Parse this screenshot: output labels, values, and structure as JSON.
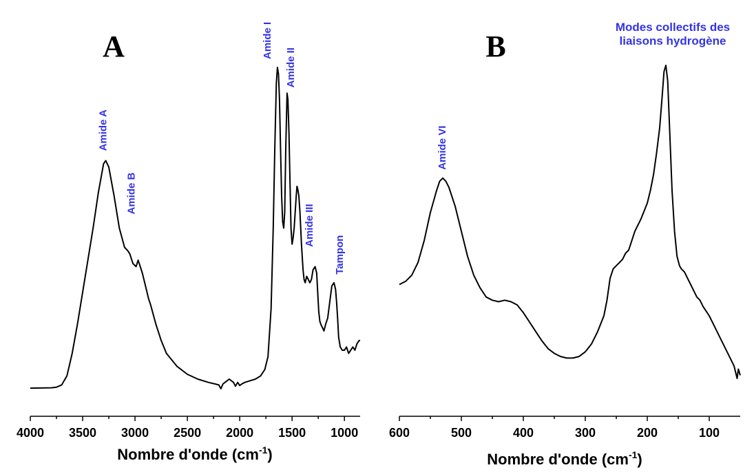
{
  "annotation_color": "#3333e6",
  "line_color": "#000000",
  "chart_data": [
    {
      "type": "line",
      "panel_label": "A",
      "xlabel_main": "Nombre d'onde (cm",
      "xlabel_sup": "-1",
      "xlabel_end": ")",
      "xlim": [
        4000,
        850
      ],
      "xlim_reversed": true,
      "ylim": [
        0,
        1
      ],
      "y_axis_shown": false,
      "xticks": [
        4000,
        3500,
        3000,
        2500,
        2000,
        1500,
        1000
      ],
      "xtick_labels": [
        "4000",
        "3500",
        "3000",
        "2500",
        "2000",
        "1500",
        "1000"
      ],
      "series": [
        {
          "x": [
            4000,
            3800,
            3750,
            3700,
            3650,
            3600,
            3550,
            3500,
            3450,
            3400,
            3350,
            3300,
            3280,
            3250,
            3200,
            3150,
            3100,
            3070,
            3050,
            3020,
            2990,
            2970,
            2950,
            2930,
            2900,
            2870,
            2850,
            2800,
            2750,
            2700,
            2600,
            2500,
            2400,
            2300,
            2200,
            2180,
            2160,
            2140,
            2100,
            2060,
            2040,
            2020,
            2000,
            1980,
            1950,
            1900,
            1850,
            1800,
            1760,
            1730,
            1700,
            1680,
            1665,
            1650,
            1640,
            1630,
            1620,
            1610,
            1600,
            1590,
            1580,
            1570,
            1560,
            1548,
            1540,
            1530,
            1520,
            1510,
            1500,
            1490,
            1480,
            1470,
            1460,
            1453,
            1445,
            1435,
            1425,
            1410,
            1395,
            1385,
            1375,
            1360,
            1345,
            1330,
            1315,
            1300,
            1280,
            1265,
            1255,
            1245,
            1235,
            1225,
            1210,
            1195,
            1180,
            1160,
            1140,
            1120,
            1100,
            1085,
            1075,
            1065,
            1055,
            1040,
            1020,
            1000,
            980,
            960,
            940,
            920,
            900,
            880,
            860,
            850
          ],
          "y": [
            0.002,
            0.003,
            0.005,
            0.012,
            0.04,
            0.11,
            0.2,
            0.3,
            0.4,
            0.5,
            0.61,
            0.7,
            0.71,
            0.69,
            0.6,
            0.5,
            0.44,
            0.43,
            0.42,
            0.39,
            0.38,
            0.4,
            0.38,
            0.36,
            0.32,
            0.28,
            0.26,
            0.2,
            0.15,
            0.11,
            0.07,
            0.045,
            0.03,
            0.02,
            0.012,
            0.0,
            0.015,
            0.02,
            0.03,
            0.02,
            0.008,
            0.02,
            0.01,
            0.015,
            0.02,
            0.025,
            0.03,
            0.04,
            0.06,
            0.1,
            0.25,
            0.5,
            0.75,
            0.95,
            1.0,
            0.98,
            0.9,
            0.75,
            0.6,
            0.52,
            0.5,
            0.55,
            0.75,
            0.92,
            0.9,
            0.8,
            0.65,
            0.5,
            0.45,
            0.47,
            0.5,
            0.55,
            0.6,
            0.63,
            0.62,
            0.6,
            0.55,
            0.45,
            0.37,
            0.34,
            0.33,
            0.35,
            0.34,
            0.33,
            0.34,
            0.37,
            0.38,
            0.36,
            0.3,
            0.24,
            0.21,
            0.2,
            0.19,
            0.18,
            0.2,
            0.22,
            0.27,
            0.32,
            0.33,
            0.31,
            0.27,
            0.22,
            0.16,
            0.13,
            0.12,
            0.12,
            0.13,
            0.11,
            0.12,
            0.13,
            0.12,
            0.14,
            0.15,
            0.15
          ]
        }
      ],
      "annotations": [
        {
          "text": "Amide A",
          "x": 3300,
          "y": 0.71
        },
        {
          "text": "Amide B",
          "x": 3030,
          "y": 0.5
        },
        {
          "text": "Amide I",
          "x": 1640,
          "y": 1.0
        },
        {
          "text": "Amide II",
          "x": 1480,
          "y": 0.92
        },
        {
          "text": "Amide III",
          "x": 1290,
          "y": 0.42
        },
        {
          "text": "Tampon",
          "x": 1080,
          "y": 0.33
        }
      ]
    },
    {
      "type": "line",
      "panel_label": "B",
      "xlabel_main": "Nombre d'onde (cm",
      "xlabel_sup": "-1",
      "xlabel_end": ")",
      "xlim": [
        600,
        50
      ],
      "xlim_reversed": true,
      "ylim": [
        0,
        1
      ],
      "y_axis_shown": false,
      "xticks": [
        600,
        500,
        400,
        300,
        200,
        100
      ],
      "xtick_labels": [
        "600",
        "500",
        "400",
        "300",
        "200",
        "100"
      ],
      "series": [
        {
          "x": [
            600,
            590,
            580,
            570,
            560,
            550,
            540,
            535,
            530,
            525,
            520,
            510,
            500,
            490,
            480,
            470,
            460,
            450,
            440,
            430,
            420,
            410,
            400,
            390,
            380,
            370,
            360,
            350,
            340,
            330,
            320,
            310,
            300,
            290,
            280,
            270,
            265,
            260,
            255,
            250,
            240,
            235,
            230,
            225,
            220,
            210,
            200,
            195,
            190,
            185,
            180,
            176,
            173,
            170,
            167,
            164,
            160,
            156,
            152,
            148,
            145,
            140,
            135,
            130,
            125,
            120,
            115,
            110,
            100,
            90,
            80,
            70,
            60,
            55,
            53,
            50
          ],
          "y": [
            0.3,
            0.31,
            0.33,
            0.37,
            0.44,
            0.53,
            0.6,
            0.63,
            0.64,
            0.63,
            0.61,
            0.55,
            0.47,
            0.39,
            0.33,
            0.29,
            0.26,
            0.25,
            0.245,
            0.25,
            0.245,
            0.235,
            0.21,
            0.18,
            0.15,
            0.12,
            0.095,
            0.08,
            0.07,
            0.065,
            0.065,
            0.07,
            0.085,
            0.11,
            0.15,
            0.2,
            0.25,
            0.32,
            0.35,
            0.36,
            0.38,
            0.4,
            0.41,
            0.44,
            0.47,
            0.51,
            0.56,
            0.6,
            0.65,
            0.72,
            0.8,
            0.9,
            0.98,
            1.0,
            0.95,
            0.8,
            0.6,
            0.47,
            0.39,
            0.36,
            0.35,
            0.34,
            0.32,
            0.3,
            0.28,
            0.26,
            0.25,
            0.23,
            0.2,
            0.16,
            0.12,
            0.08,
            0.04,
            0.0,
            0.03,
            0.01
          ]
        }
      ],
      "annotations": [
        {
          "text": "Amide VI",
          "x": 530,
          "y": 0.64
        },
        {
          "text": "Modes collectifs des",
          "x": 170,
          "y": 1.0,
          "line": 0
        },
        {
          "text": "liaisons hydrogène",
          "x": 170,
          "y": 1.0,
          "line": 1
        }
      ]
    }
  ]
}
